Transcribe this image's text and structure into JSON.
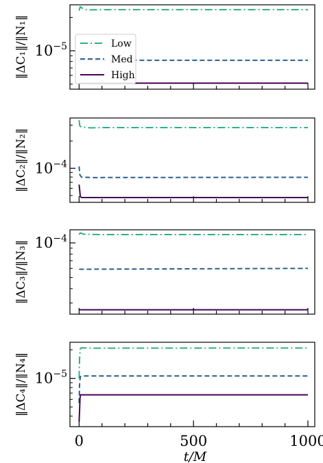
{
  "colors": {
    "low": "#2db27d",
    "med": "#2c5f8a",
    "high": "#440154",
    "axis": "#000000"
  },
  "legend": {
    "placement": "center-left",
    "panel": 0,
    "entries": [
      {
        "label": "Low",
        "style": "dashdot",
        "color": "#2db27d"
      },
      {
        "label": "Med",
        "style": "dashed",
        "color": "#2c5f8a"
      },
      {
        "label": "High",
        "style": "solid",
        "color": "#440154"
      }
    ]
  },
  "xaxis": {
    "label": "t/M",
    "ticks": [
      0,
      500,
      1000
    ],
    "tick_labels": [
      "0",
      "500",
      "1000"
    ],
    "xlim": [
      -40,
      1030
    ]
  },
  "chart_data": [
    {
      "type": "line",
      "scale": "log",
      "ylabel": "‖ΔC₁‖/‖N₁‖",
      "ytick_label": "10−5",
      "ytick_base": "10",
      "ytick_exp": "−5",
      "ytick_value": 1e-05,
      "ylim": [
        4.5e-06,
        2.6e-05
      ],
      "series": [
        {
          "name": "Low",
          "x": [
            0,
            5,
            10,
            25,
            50,
            100,
            1000
          ],
          "y": [
            2.3e-05,
            2.5e-05,
            2.45e-05,
            2.35e-05,
            2.34e-05,
            2.35e-05,
            2.35e-05
          ]
        },
        {
          "name": "Med",
          "x": [
            0,
            1000
          ],
          "y": [
            8.2e-06,
            8.2e-06
          ]
        },
        {
          "name": "High",
          "x": [
            0,
            1000
          ],
          "y": [
            5.1e-06,
            5.1e-06
          ]
        }
      ]
    },
    {
      "type": "line",
      "scale": "log",
      "ylabel": "‖ΔC₂‖/‖N₂‖",
      "ytick_label": "10−4",
      "ytick_base": "10",
      "ytick_exp": "−4",
      "ytick_value": 0.0001,
      "ylim": [
        4.2e-05,
        0.00036
      ],
      "series": [
        {
          "name": "Low",
          "x": [
            0,
            3,
            10,
            50,
            100,
            1000
          ],
          "y": [
            0.00034,
            0.000295,
            0.000285,
            0.00028,
            0.000282,
            0.000282
          ]
        },
        {
          "name": "Med",
          "x": [
            0,
            3,
            10,
            50,
            1000
          ],
          "y": [
            0.000105,
            8.5e-05,
            8e-05,
            7.9e-05,
            7.95e-05
          ]
        },
        {
          "name": "High",
          "x": [
            0,
            3,
            5,
            10,
            1000
          ],
          "y": [
            6.6e-05,
            5.6e-05,
            4.9e-05,
            4.75e-05,
            4.75e-05
          ]
        }
      ]
    },
    {
      "type": "line",
      "scale": "log",
      "ylabel": "‖ΔC₃‖/‖N₃‖",
      "ytick_label": "10−4",
      "ytick_base": "10",
      "ytick_exp": "−4",
      "ytick_value": 0.0001,
      "ylim": [
        2.4e-05,
        0.00013
      ],
      "series": [
        {
          "name": "Low",
          "x": [
            0,
            5,
            20,
            100,
            1000
          ],
          "y": [
            0.000118,
            0.000122,
            0.000119,
            0.000118,
            0.000118
          ]
        },
        {
          "name": "Med",
          "x": [
            0,
            1000
          ],
          "y": [
            5.9e-05,
            6e-05
          ]
        },
        {
          "name": "High",
          "x": [
            0,
            1000
          ],
          "y": [
            2.62e-05,
            2.62e-05
          ]
        }
      ]
    },
    {
      "type": "line",
      "scale": "log",
      "ylabel": "‖ΔC₄‖/‖N₄‖",
      "ytick_label": "10−5",
      "ytick_base": "10",
      "ytick_exp": "−5",
      "ytick_value": 1e-05,
      "ylim": [
        3.1e-06,
        2.4e-05
      ],
      "series": [
        {
          "name": "Low",
          "x": [
            0,
            2,
            5,
            10,
            50,
            1000
          ],
          "y": [
            1e-05,
            1.6e-05,
            2.05e-05,
            2.1e-05,
            2.08e-05,
            2.09e-05
          ]
        },
        {
          "name": "Med",
          "x": [
            0,
            2,
            5,
            10,
            1000
          ],
          "y": [
            5.5e-06,
            8.5e-06,
            1.04e-05,
            1.06e-05,
            1.06e-05
          ]
        },
        {
          "name": "High",
          "x": [
            0,
            2,
            4,
            6,
            10,
            1000
          ],
          "y": [
            3.5e-06,
            4.5e-06,
            6.2e-06,
            6.7e-06,
            6.7e-06,
            6.7e-06
          ]
        }
      ]
    }
  ]
}
